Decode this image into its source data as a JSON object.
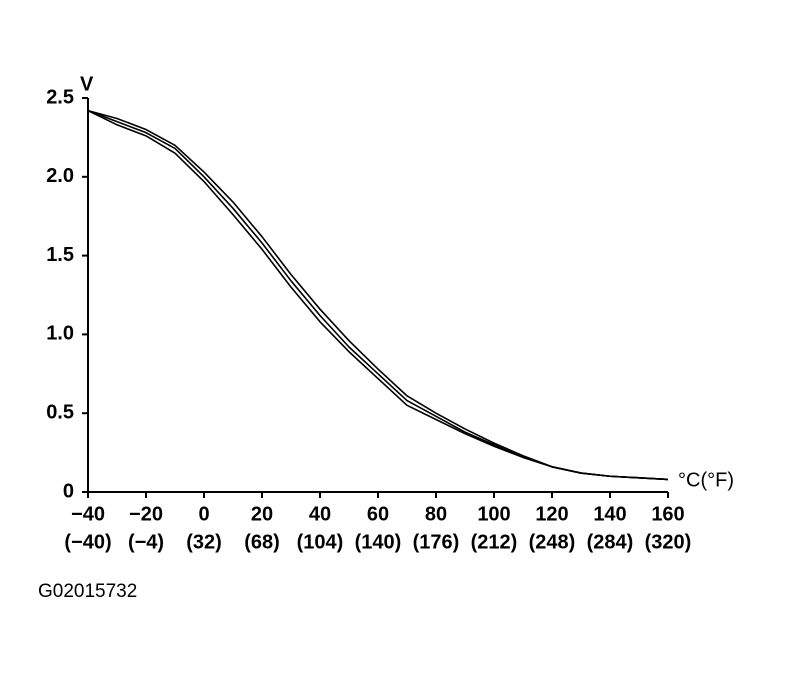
{
  "chart_data": {
    "type": "line",
    "y_label": "V",
    "x_label": "°C(°F)",
    "x": [
      -40,
      -30,
      -20,
      -10,
      0,
      10,
      20,
      30,
      40,
      50,
      60,
      70,
      80,
      90,
      100,
      110,
      120,
      130,
      140,
      150,
      160
    ],
    "series": [
      {
        "color": "#000000",
        "values": [
          2.42,
          2.37,
          2.3,
          2.2,
          2.03,
          1.84,
          1.62,
          1.38,
          1.16,
          0.96,
          0.78,
          0.61,
          0.5,
          0.4,
          0.31,
          0.23,
          0.16,
          0.12,
          0.1,
          0.09,
          0.08
        ]
      },
      {
        "color": "#000000",
        "values": [
          2.42,
          2.35,
          2.28,
          2.18,
          2.0,
          1.8,
          1.58,
          1.34,
          1.12,
          0.92,
          0.75,
          0.58,
          0.48,
          0.38,
          0.3,
          0.22,
          0.16,
          0.12,
          0.1,
          0.09,
          0.08
        ]
      },
      {
        "color": "#000000",
        "values": [
          2.42,
          2.33,
          2.26,
          2.15,
          1.97,
          1.76,
          1.54,
          1.3,
          1.08,
          0.89,
          0.72,
          0.55,
          0.46,
          0.37,
          0.29,
          0.22,
          0.16,
          0.12,
          0.1,
          0.09,
          0.08
        ]
      }
    ],
    "xlim": [
      -40,
      160
    ],
    "ylim": [
      0,
      2.5
    ],
    "xticks": [
      {
        "value": -40,
        "label": "−40"
      },
      {
        "value": -20,
        "label": "−20"
      },
      0,
      20,
      40,
      60,
      80,
      100,
      120,
      140,
      160
    ],
    "xtick_fahrenheit_labels": [
      "(−40)",
      "(−4)",
      "(32)",
      "(68)",
      "(104)",
      "(140)",
      "(176)",
      "(212)",
      "(248)",
      "(284)",
      "(320)"
    ],
    "yticks": [
      0,
      0.5,
      {
        "value": 1,
        "label": "1.0"
      },
      1.5,
      {
        "value": 2,
        "label": "2.0"
      },
      2.5
    ]
  },
  "figure_id": "G02015732"
}
